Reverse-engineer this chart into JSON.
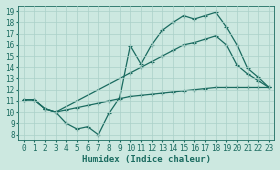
{
  "xlabel": "Humidex (Indice chaleur)",
  "xlim": [
    -0.5,
    23.5
  ],
  "ylim": [
    7.5,
    19.5
  ],
  "xticks": [
    0,
    1,
    2,
    3,
    4,
    5,
    6,
    7,
    8,
    9,
    10,
    11,
    12,
    13,
    14,
    15,
    16,
    17,
    18,
    19,
    20,
    21,
    22,
    23
  ],
  "yticks": [
    8,
    9,
    10,
    11,
    12,
    13,
    14,
    15,
    16,
    17,
    18,
    19
  ],
  "bg_color": "#cce8e0",
  "grid_color": "#aad0c8",
  "line_color": "#1a6b60",
  "line1_x": [
    0,
    1,
    2,
    3,
    4,
    5,
    6,
    7,
    8,
    9,
    10,
    11,
    12,
    13,
    14,
    15,
    16,
    17,
    18,
    19,
    20,
    21,
    22,
    23
  ],
  "line1_y": [
    11.1,
    11.1,
    10.3,
    10.0,
    9.0,
    8.5,
    8.7,
    8.0,
    9.9,
    11.3,
    15.9,
    14.3,
    16.0,
    17.3,
    18.0,
    18.6,
    18.3,
    18.6,
    18.9,
    17.6,
    16.0,
    13.9,
    13.1,
    12.2
  ],
  "line2_x": [
    0,
    1,
    2,
    3,
    10,
    11,
    12,
    13,
    14,
    15,
    16,
    17,
    18,
    19,
    20,
    21,
    22,
    23
  ],
  "line2_y": [
    11.1,
    11.1,
    10.3,
    10.0,
    13.5,
    14.0,
    14.5,
    15.0,
    15.5,
    16.0,
    16.2,
    16.5,
    16.8,
    16.0,
    14.2,
    13.4,
    12.8,
    12.2
  ],
  "line3_x": [
    0,
    1,
    2,
    3,
    4,
    5,
    6,
    7,
    8,
    9,
    10,
    11,
    12,
    13,
    14,
    15,
    16,
    17,
    18,
    19,
    20,
    21,
    22,
    23
  ],
  "line3_y": [
    11.1,
    11.1,
    10.3,
    10.0,
    10.2,
    10.4,
    10.6,
    10.8,
    11.0,
    11.2,
    11.4,
    11.5,
    11.6,
    11.7,
    11.8,
    11.9,
    12.0,
    12.1,
    12.2,
    12.2,
    12.2,
    12.2,
    12.2,
    12.2
  ],
  "markersize": 3,
  "linewidth": 0.9,
  "font_color": "#1a6b60",
  "tick_fontsize": 5.5,
  "xlabel_fontsize": 6.5
}
